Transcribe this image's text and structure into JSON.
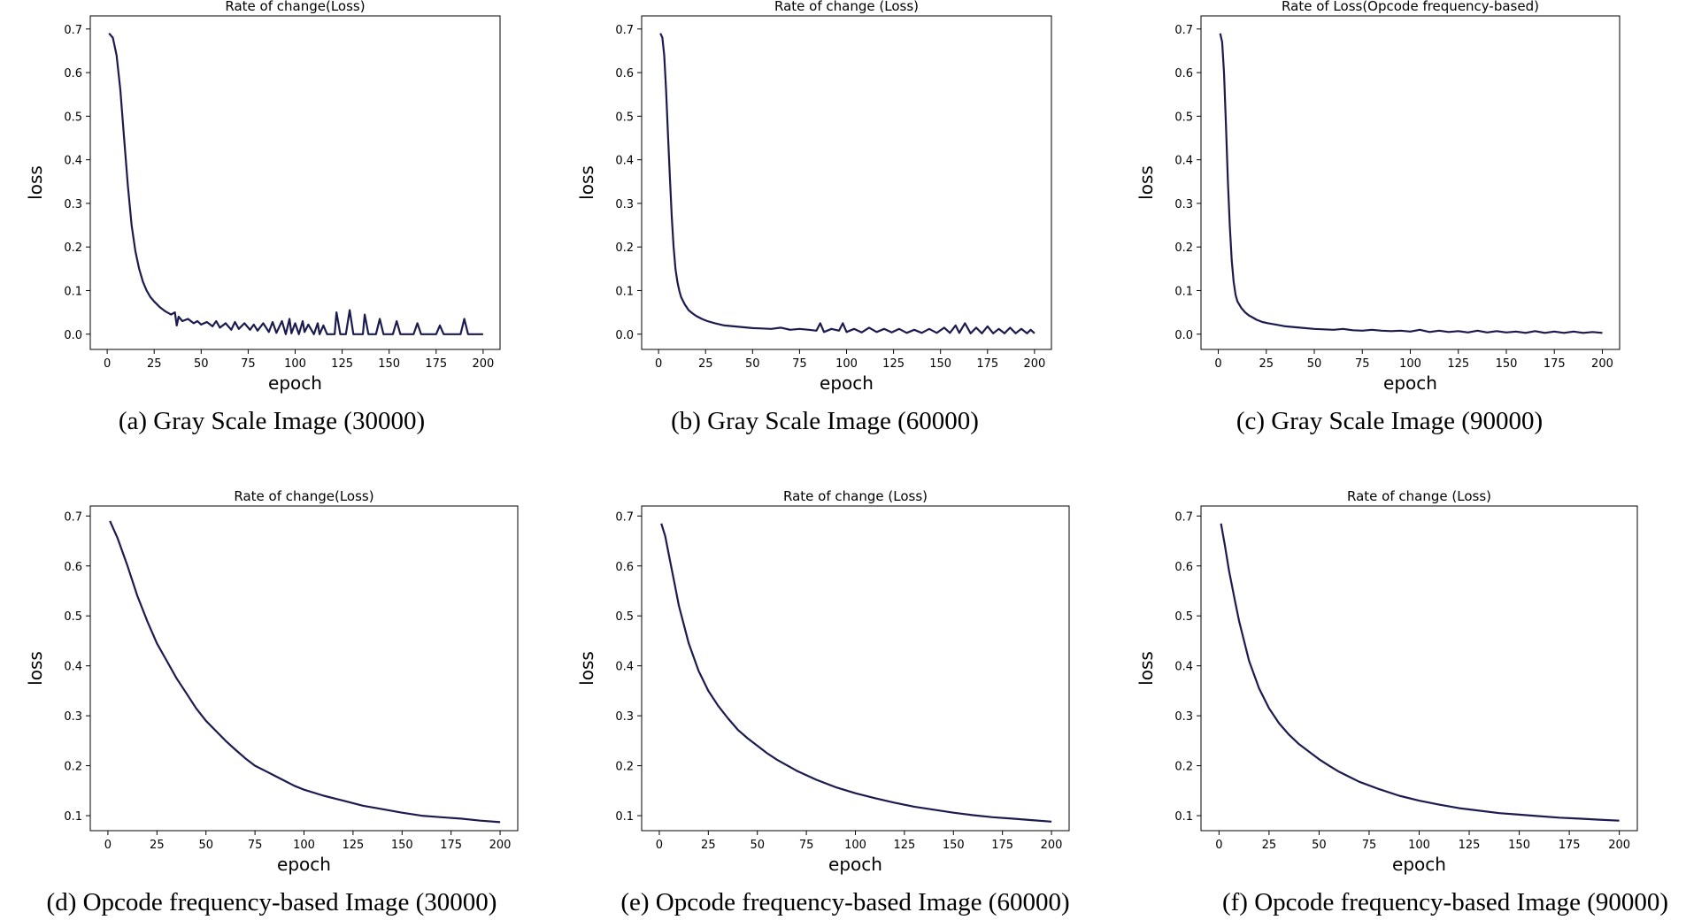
{
  "chart_data": [
    {
      "type": "line",
      "title": "Rate of change(Loss)",
      "caption": "(a) Gray Scale Image (30000)",
      "xlabel": "epoch",
      "ylabel": "loss",
      "xlim": [
        -9,
        209
      ],
      "ylim": [
        -0.035,
        0.73
      ],
      "xticks": [
        0,
        25,
        50,
        75,
        100,
        125,
        150,
        175,
        200
      ],
      "yticks": [
        0.0,
        0.1,
        0.2,
        0.3,
        0.4,
        0.5,
        0.6,
        0.7
      ],
      "ytick_decimals": 1,
      "grid": false,
      "series": [
        {
          "color": "#1b1b4f",
          "x": [
            1,
            3,
            5,
            7,
            9,
            11,
            13,
            15,
            17,
            19,
            21,
            23,
            25,
            28,
            31,
            34,
            36,
            37,
            38,
            40,
            43,
            46,
            48,
            50,
            53,
            56,
            58,
            60,
            63,
            66,
            68,
            70,
            73,
            76,
            78,
            80,
            83,
            86,
            88,
            90,
            93,
            95,
            97,
            98,
            100,
            102,
            104,
            105,
            107,
            110,
            112,
            113,
            115,
            117,
            119,
            121,
            122,
            124,
            127,
            129,
            131,
            133,
            136,
            137,
            139,
            141,
            143,
            145,
            147,
            149,
            150,
            152,
            154,
            156,
            158,
            160,
            163,
            165,
            167,
            170,
            173,
            175,
            177,
            179,
            182,
            185,
            188,
            190,
            192,
            194,
            197,
            200
          ],
          "y": [
            0.69,
            0.68,
            0.64,
            0.56,
            0.45,
            0.34,
            0.25,
            0.19,
            0.15,
            0.12,
            0.1,
            0.085,
            0.075,
            0.062,
            0.052,
            0.045,
            0.05,
            0.02,
            0.04,
            0.03,
            0.035,
            0.025,
            0.03,
            0.022,
            0.028,
            0.018,
            0.03,
            0.015,
            0.025,
            0.01,
            0.028,
            0.012,
            0.025,
            0.01,
            0.022,
            0.008,
            0.025,
            0.005,
            0.028,
            0.003,
            0.03,
            0.0,
            0.035,
            0.002,
            0.025,
            0.0,
            0.03,
            0.005,
            0.022,
            0.0,
            0.025,
            0.0,
            0.02,
            0.0,
            0.0,
            0.0,
            0.05,
            0.0,
            0.0,
            0.055,
            0.0,
            0.0,
            0.0,
            0.045,
            0.0,
            0.0,
            0.0,
            0.035,
            0.0,
            0.0,
            0.0,
            0.0,
            0.03,
            0.0,
            0.0,
            0.0,
            0.0,
            0.025,
            0.0,
            0.0,
            0.0,
            0.0,
            0.02,
            0.0,
            0.0,
            0.0,
            0.0,
            0.035,
            0.0,
            0.0,
            0.0,
            0.0
          ]
        }
      ]
    },
    {
      "type": "line",
      "title": "Rate of change (Loss)",
      "caption": "(b) Gray Scale Image (60000)",
      "xlabel": "epoch",
      "ylabel": "loss",
      "xlim": [
        -9,
        209
      ],
      "ylim": [
        -0.035,
        0.73
      ],
      "xticks": [
        0,
        25,
        50,
        75,
        100,
        125,
        150,
        175,
        200
      ],
      "yticks": [
        0.0,
        0.1,
        0.2,
        0.3,
        0.4,
        0.5,
        0.6,
        0.7
      ],
      "ytick_decimals": 1,
      "grid": false,
      "series": [
        {
          "color": "#1b1b4f",
          "x": [
            1,
            2,
            3,
            4,
            5,
            6,
            7,
            8,
            9,
            10,
            11,
            12,
            14,
            16,
            18,
            20,
            23,
            26,
            30,
            35,
            40,
            45,
            50,
            55,
            60,
            65,
            70,
            75,
            80,
            84,
            86,
            88,
            92,
            96,
            98,
            100,
            104,
            108,
            112,
            116,
            120,
            124,
            128,
            132,
            136,
            140,
            144,
            148,
            152,
            155,
            158,
            160,
            163,
            166,
            169,
            172,
            175,
            178,
            181,
            184,
            187,
            190,
            193,
            196,
            198,
            200
          ],
          "y": [
            0.69,
            0.68,
            0.64,
            0.56,
            0.46,
            0.36,
            0.27,
            0.2,
            0.15,
            0.12,
            0.1,
            0.085,
            0.068,
            0.055,
            0.048,
            0.042,
            0.035,
            0.03,
            0.025,
            0.02,
            0.018,
            0.016,
            0.014,
            0.013,
            0.012,
            0.015,
            0.01,
            0.012,
            0.01,
            0.008,
            0.025,
            0.005,
            0.012,
            0.008,
            0.025,
            0.005,
            0.012,
            0.004,
            0.015,
            0.005,
            0.012,
            0.004,
            0.012,
            0.003,
            0.01,
            0.003,
            0.012,
            0.003,
            0.015,
            0.003,
            0.02,
            0.003,
            0.025,
            0.002,
            0.015,
            0.002,
            0.018,
            0.002,
            0.012,
            0.002,
            0.015,
            0.002,
            0.012,
            0.002,
            0.01,
            0.002
          ]
        }
      ]
    },
    {
      "type": "line",
      "title": "Rate of Loss(Opcode frequency-based)",
      "caption": "(c) Gray Scale Image (90000)",
      "xlabel": "epoch",
      "ylabel": "loss",
      "xlim": [
        -9,
        209
      ],
      "ylim": [
        -0.035,
        0.73
      ],
      "xticks": [
        0,
        25,
        50,
        75,
        100,
        125,
        150,
        175,
        200
      ],
      "yticks": [
        0.0,
        0.1,
        0.2,
        0.3,
        0.4,
        0.5,
        0.6,
        0.7
      ],
      "ytick_decimals": 1,
      "grid": false,
      "series": [
        {
          "color": "#1b1b4f",
          "x": [
            1,
            2,
            3,
            4,
            5,
            6,
            7,
            8,
            9,
            10,
            12,
            14,
            16,
            18,
            20,
            23,
            26,
            30,
            35,
            40,
            45,
            50,
            55,
            60,
            65,
            70,
            75,
            80,
            85,
            90,
            95,
            100,
            105,
            110,
            115,
            120,
            125,
            130,
            135,
            140,
            145,
            150,
            155,
            160,
            165,
            170,
            175,
            180,
            185,
            190,
            195,
            200
          ],
          "y": [
            0.69,
            0.67,
            0.6,
            0.48,
            0.35,
            0.25,
            0.17,
            0.12,
            0.09,
            0.075,
            0.06,
            0.05,
            0.043,
            0.038,
            0.033,
            0.028,
            0.025,
            0.022,
            0.018,
            0.016,
            0.014,
            0.012,
            0.011,
            0.01,
            0.012,
            0.009,
            0.008,
            0.01,
            0.008,
            0.007,
            0.008,
            0.006,
            0.01,
            0.005,
            0.008,
            0.005,
            0.007,
            0.004,
            0.008,
            0.004,
            0.007,
            0.004,
            0.006,
            0.003,
            0.007,
            0.003,
            0.006,
            0.003,
            0.006,
            0.003,
            0.005,
            0.003
          ]
        }
      ]
    },
    {
      "type": "line",
      "title": "Rate of change(Loss)",
      "caption": "(d) Opcode frequency-based Image (30000)",
      "xlabel": "epoch",
      "ylabel": "loss",
      "xlim": [
        -9,
        209
      ],
      "ylim": [
        0.07,
        0.72
      ],
      "xticks": [
        0,
        25,
        50,
        75,
        100,
        125,
        150,
        175,
        200
      ],
      "yticks": [
        0.1,
        0.2,
        0.3,
        0.4,
        0.5,
        0.6,
        0.7
      ],
      "ytick_decimals": 1,
      "grid": false,
      "series": [
        {
          "color": "#1b1b4f",
          "x": [
            1,
            5,
            10,
            15,
            20,
            25,
            30,
            35,
            40,
            45,
            50,
            55,
            60,
            65,
            70,
            75,
            80,
            85,
            90,
            95,
            100,
            110,
            120,
            130,
            140,
            150,
            160,
            170,
            180,
            190,
            200
          ],
          "y": [
            0.69,
            0.655,
            0.6,
            0.54,
            0.49,
            0.445,
            0.41,
            0.375,
            0.345,
            0.315,
            0.29,
            0.27,
            0.25,
            0.232,
            0.215,
            0.2,
            0.19,
            0.18,
            0.17,
            0.16,
            0.152,
            0.14,
            0.13,
            0.12,
            0.113,
            0.106,
            0.1,
            0.097,
            0.094,
            0.09,
            0.087
          ]
        }
      ]
    },
    {
      "type": "line",
      "title": "Rate of change (Loss)",
      "caption": "(e) Opcode frequency-based Image (60000)",
      "xlabel": "epoch",
      "ylabel": "loss",
      "xlim": [
        -9,
        209
      ],
      "ylim": [
        0.07,
        0.72
      ],
      "xticks": [
        0,
        25,
        50,
        75,
        100,
        125,
        150,
        175,
        200
      ],
      "yticks": [
        0.1,
        0.2,
        0.3,
        0.4,
        0.5,
        0.6,
        0.7
      ],
      "ytick_decimals": 1,
      "grid": false,
      "series": [
        {
          "color": "#1b1b4f",
          "x": [
            1,
            3,
            5,
            8,
            10,
            15,
            20,
            25,
            30,
            35,
            40,
            45,
            50,
            55,
            60,
            70,
            80,
            90,
            100,
            110,
            120,
            130,
            140,
            150,
            160,
            170,
            180,
            190,
            200
          ],
          "y": [
            0.685,
            0.66,
            0.62,
            0.56,
            0.52,
            0.445,
            0.39,
            0.35,
            0.32,
            0.295,
            0.272,
            0.255,
            0.24,
            0.225,
            0.212,
            0.19,
            0.172,
            0.157,
            0.145,
            0.135,
            0.126,
            0.118,
            0.112,
            0.106,
            0.101,
            0.097,
            0.094,
            0.091,
            0.088
          ]
        }
      ]
    },
    {
      "type": "line",
      "title": "Rate of change (Loss)",
      "caption": "(f) Opcode frequency-based Image (90000)",
      "xlabel": "epoch",
      "ylabel": "loss",
      "xlim": [
        -9,
        209
      ],
      "ylim": [
        0.07,
        0.72
      ],
      "xticks": [
        0,
        25,
        50,
        75,
        100,
        125,
        150,
        175,
        200
      ],
      "yticks": [
        0.1,
        0.2,
        0.3,
        0.4,
        0.5,
        0.6,
        0.7
      ],
      "ytick_decimals": 1,
      "grid": false,
      "series": [
        {
          "color": "#1b1b4f",
          "x": [
            1,
            3,
            5,
            8,
            10,
            15,
            20,
            25,
            30,
            35,
            40,
            45,
            50,
            55,
            60,
            70,
            80,
            90,
            100,
            110,
            120,
            130,
            140,
            150,
            160,
            170,
            180,
            190,
            200
          ],
          "y": [
            0.685,
            0.64,
            0.59,
            0.53,
            0.49,
            0.41,
            0.355,
            0.315,
            0.285,
            0.262,
            0.243,
            0.228,
            0.213,
            0.2,
            0.188,
            0.168,
            0.153,
            0.14,
            0.13,
            0.122,
            0.115,
            0.11,
            0.105,
            0.102,
            0.099,
            0.096,
            0.094,
            0.092,
            0.09
          ]
        }
      ]
    }
  ]
}
